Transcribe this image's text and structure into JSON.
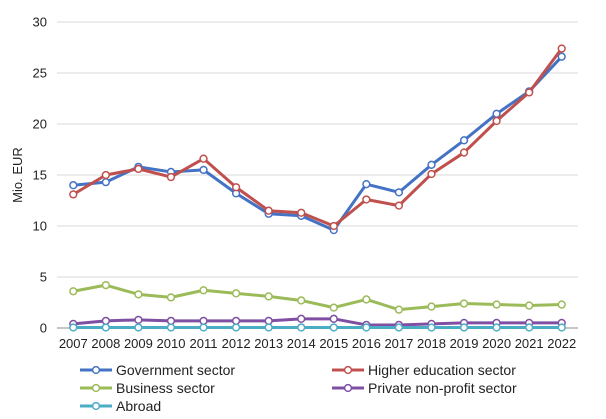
{
  "chart_data": {
    "type": "line",
    "ylabel": "Mio. EUR",
    "ylim": [
      0,
      30
    ],
    "yticks": [
      0,
      5,
      10,
      15,
      20,
      25,
      30
    ],
    "grid": "horizontal",
    "legend_position": "bottom",
    "categories": [
      "2007",
      "2008",
      "2009",
      "2010",
      "2011",
      "2012",
      "2013",
      "2014",
      "2015",
      "2016",
      "2017",
      "2018",
      "2019",
      "2020",
      "2021",
      "2022"
    ],
    "series": [
      {
        "name": "Government sector",
        "color": "#4472C4",
        "values": [
          14.0,
          14.3,
          15.8,
          15.3,
          15.5,
          13.2,
          11.2,
          11.0,
          9.6,
          14.1,
          13.3,
          16.0,
          18.4,
          21.0,
          23.2,
          26.6
        ]
      },
      {
        "name": "Higher education sector",
        "color": "#C0504D",
        "values": [
          13.1,
          15.0,
          15.6,
          14.8,
          16.6,
          13.8,
          11.5,
          11.3,
          10.0,
          12.6,
          12.0,
          15.1,
          17.2,
          20.3,
          23.1,
          27.4
        ]
      },
      {
        "name": "Business sector",
        "color": "#9BBB59",
        "values": [
          3.6,
          4.2,
          3.3,
          3.0,
          3.7,
          3.4,
          3.1,
          2.7,
          2.0,
          2.8,
          1.8,
          2.1,
          2.4,
          2.3,
          2.2,
          2.3
        ]
      },
      {
        "name": "Private non-profit sector",
        "color": "#7F4FA3",
        "values": [
          0.4,
          0.7,
          0.8,
          0.7,
          0.7,
          0.7,
          0.7,
          0.9,
          0.9,
          0.3,
          0.3,
          0.4,
          0.5,
          0.5,
          0.5,
          0.5
        ]
      },
      {
        "name": "Abroad",
        "color": "#4BACC6",
        "values": [
          0.05,
          0.05,
          0.05,
          0.05,
          0.05,
          0.05,
          0.05,
          0.05,
          0.05,
          0.05,
          0.05,
          0.05,
          0.05,
          0.05,
          0.05,
          0.05
        ]
      }
    ]
  }
}
